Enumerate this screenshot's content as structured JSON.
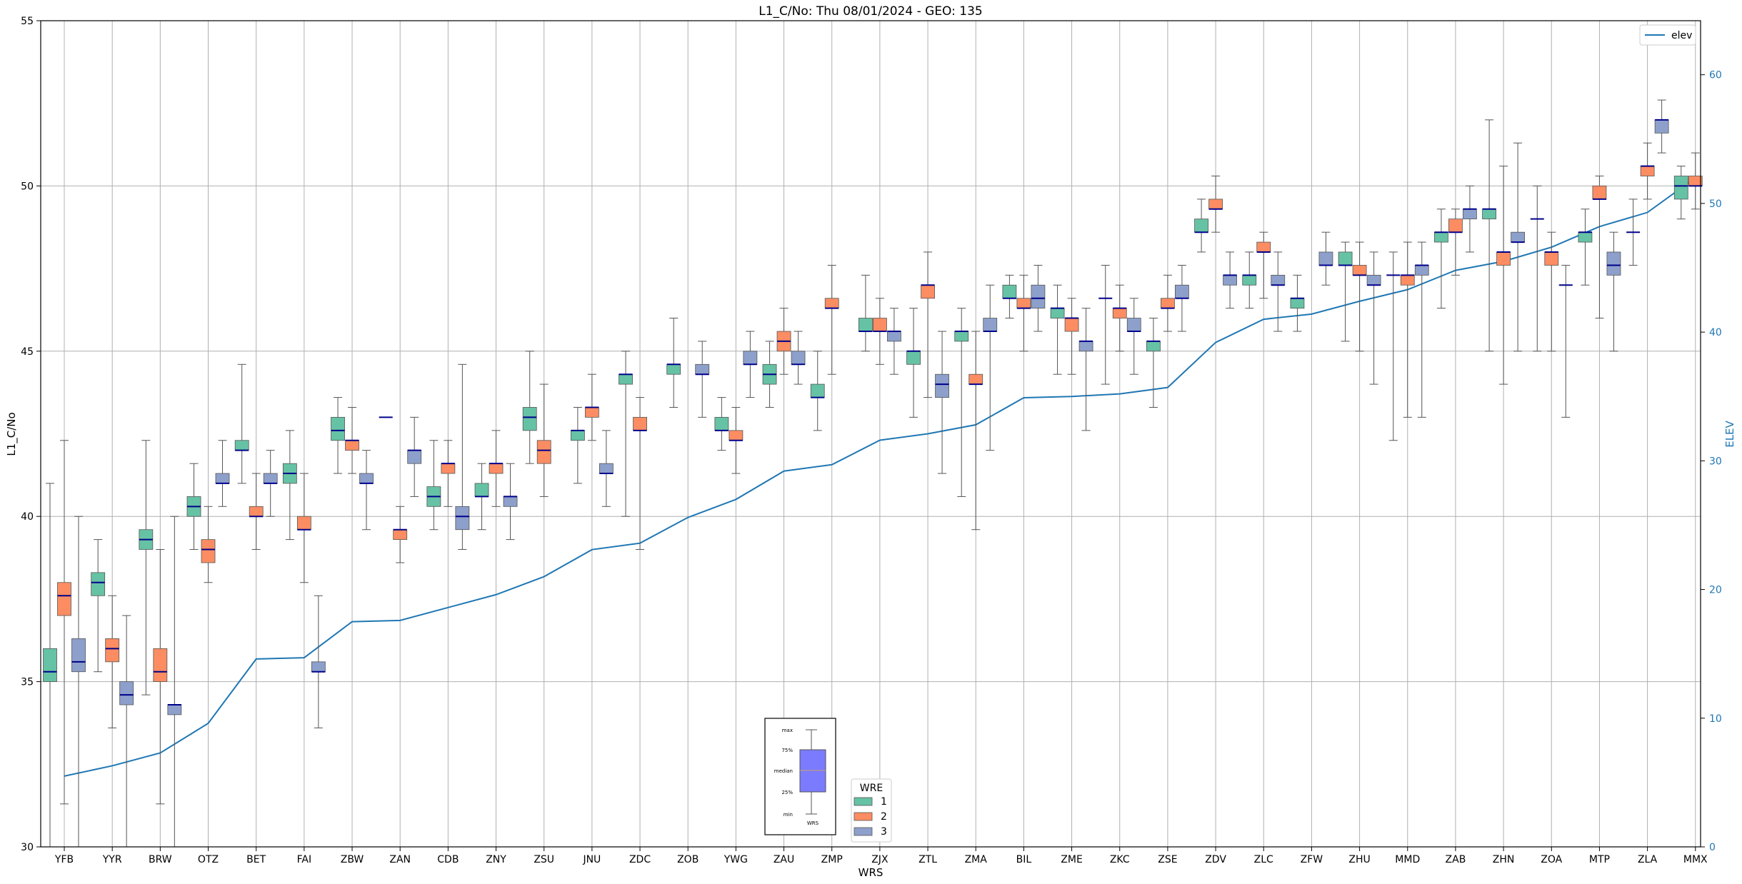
{
  "chart_data": {
    "type": "box",
    "title": "L1_C/No: Thu 08/01/2024 - GEO: 135",
    "xlabel": "WRS",
    "ylabel": "L1_C/No",
    "y2label": "ELEV",
    "ylim": [
      30,
      55
    ],
    "y2lim": [
      0,
      64.2
    ],
    "yticks": [
      "30",
      "35",
      "40",
      "45",
      "50",
      "55"
    ],
    "y2ticks": [
      "0",
      "10",
      "20",
      "30",
      "40",
      "50",
      "60"
    ],
    "grid": true,
    "colors": {
      "wre1": "#66c2a5",
      "wre2": "#fc8d62",
      "wre3": "#8da0cb",
      "elev": "#1f77b4",
      "median": "#00008b",
      "whisker": "#555555",
      "key_box": "#7b7bff"
    },
    "categories": [
      "YFB",
      "YYR",
      "BRW",
      "OTZ",
      "BET",
      "FAI",
      "ZBW",
      "ZAN",
      "CDB",
      "ZNY",
      "ZSU",
      "JNU",
      "ZDC",
      "ZOB",
      "YWG",
      "ZAU",
      "ZMP",
      "ZJX",
      "ZTL",
      "ZMA",
      "BIL",
      "ZME",
      "ZKC",
      "ZSE",
      "ZDV",
      "ZLC",
      "ZFW",
      "ZHU",
      "MMD",
      "ZAB",
      "ZHN",
      "ZOA",
      "MTP",
      "ZLA",
      "MMX"
    ],
    "series": [
      {
        "name": "1",
        "boxes": [
          [
            30.0,
            35.0,
            35.3,
            36.0,
            41.0
          ],
          [
            35.3,
            37.6,
            38.0,
            38.3,
            39.3
          ],
          [
            34.6,
            39.0,
            39.3,
            39.6,
            42.3
          ],
          [
            39.0,
            40.0,
            40.3,
            40.6,
            41.6
          ],
          [
            41.0,
            42.0,
            42.0,
            42.3,
            44.6
          ],
          [
            39.3,
            41.0,
            41.3,
            41.6,
            42.6
          ],
          [
            41.3,
            42.3,
            42.6,
            43.0,
            43.6
          ],
          [
            null,
            null,
            43.0,
            null,
            44.0
          ],
          [
            39.6,
            40.3,
            40.6,
            40.9,
            42.3
          ],
          [
            39.6,
            40.6,
            40.6,
            41.0,
            41.6
          ],
          [
            41.6,
            42.6,
            43.0,
            43.3,
            45.0
          ],
          [
            41.0,
            42.3,
            42.6,
            42.6,
            43.3
          ],
          [
            40.0,
            44.0,
            44.3,
            44.3,
            45.0
          ],
          [
            43.3,
            44.3,
            44.6,
            44.6,
            46.0
          ],
          [
            42.0,
            42.6,
            42.6,
            43.0,
            43.6
          ],
          [
            43.3,
            44.0,
            44.3,
            44.6,
            45.3
          ],
          [
            42.6,
            43.6,
            43.6,
            44.0,
            45.0
          ],
          [
            45.0,
            45.6,
            45.6,
            46.0,
            47.3
          ],
          [
            43.0,
            44.6,
            45.0,
            45.0,
            46.3
          ],
          [
            40.6,
            45.3,
            45.6,
            45.6,
            46.3
          ],
          [
            46.0,
            46.6,
            46.6,
            47.0,
            47.3
          ],
          [
            44.3,
            46.0,
            46.3,
            46.3,
            47.0
          ],
          [
            44.0,
            null,
            46.6,
            null,
            47.6
          ],
          [
            43.3,
            45.0,
            45.3,
            45.3,
            46.0
          ],
          [
            48.0,
            48.6,
            48.6,
            49.0,
            49.6
          ],
          [
            46.3,
            47.0,
            47.3,
            47.3,
            48.0
          ],
          [
            45.6,
            46.3,
            46.6,
            46.6,
            47.3
          ],
          [
            45.3,
            47.6,
            47.6,
            48.0,
            48.3
          ],
          [
            42.3,
            null,
            47.3,
            null,
            48.0
          ],
          [
            46.3,
            48.3,
            48.6,
            48.6,
            49.3
          ],
          [
            45.0,
            49.0,
            49.3,
            49.3,
            52.0
          ],
          [
            45.0,
            null,
            49.0,
            null,
            50.0
          ],
          [
            47.0,
            48.3,
            48.6,
            48.6,
            49.3
          ],
          [
            47.6,
            null,
            48.6,
            null,
            49.6
          ],
          [
            49.0,
            49.6,
            50.0,
            50.3,
            50.6
          ]
        ]
      },
      {
        "name": "2",
        "boxes": [
          [
            31.3,
            37.0,
            37.6,
            38.0,
            42.3
          ],
          [
            33.6,
            35.6,
            36.0,
            36.3,
            37.6
          ],
          [
            31.3,
            35.0,
            35.3,
            36.0,
            39.0
          ],
          [
            38.0,
            38.6,
            39.0,
            39.3,
            40.3
          ],
          [
            39.0,
            40.0,
            40.0,
            40.3,
            41.3
          ],
          [
            38.0,
            39.6,
            39.6,
            40.0,
            41.3
          ],
          [
            41.3,
            42.0,
            42.3,
            42.3,
            43.3
          ],
          [
            38.6,
            39.3,
            39.6,
            39.6,
            40.3
          ],
          [
            40.3,
            41.3,
            41.6,
            41.6,
            42.3
          ],
          [
            40.3,
            41.3,
            41.6,
            41.6,
            42.6
          ],
          [
            40.6,
            41.6,
            42.0,
            42.3,
            44.0
          ],
          [
            42.3,
            43.0,
            43.3,
            43.3,
            44.3
          ],
          [
            39.0,
            42.6,
            42.6,
            43.0,
            43.6
          ],
          [
            null,
            null,
            null,
            null,
            null
          ],
          [
            41.3,
            42.3,
            42.3,
            42.6,
            43.3
          ],
          [
            44.3,
            45.0,
            45.3,
            45.6,
            46.3
          ],
          [
            44.3,
            46.3,
            46.3,
            46.6,
            47.6
          ],
          [
            44.6,
            45.6,
            45.6,
            46.0,
            46.6
          ],
          [
            43.6,
            46.6,
            47.0,
            47.0,
            48.0
          ],
          [
            39.6,
            44.0,
            44.0,
            44.3,
            45.6
          ],
          [
            45.0,
            46.3,
            46.3,
            46.6,
            47.3
          ],
          [
            44.3,
            45.6,
            46.0,
            46.0,
            46.6
          ],
          [
            45.0,
            46.0,
            46.3,
            46.3,
            47.0
          ],
          [
            45.6,
            46.3,
            46.3,
            46.6,
            47.3
          ],
          [
            48.6,
            49.3,
            49.3,
            49.6,
            50.3
          ],
          [
            46.6,
            48.0,
            48.0,
            48.3,
            48.6
          ],
          [
            null,
            null,
            null,
            null,
            null
          ],
          [
            45.0,
            47.3,
            47.3,
            47.6,
            48.3
          ],
          [
            43.0,
            47.0,
            47.3,
            47.3,
            48.3
          ],
          [
            47.3,
            48.6,
            48.6,
            49.0,
            49.3
          ],
          [
            44.0,
            47.6,
            48.0,
            48.0,
            50.6
          ],
          [
            45.0,
            47.6,
            48.0,
            48.0,
            48.6
          ],
          [
            46.0,
            49.6,
            49.6,
            50.0,
            50.3
          ],
          [
            49.6,
            50.3,
            50.6,
            50.6,
            51.3
          ],
          [
            49.3,
            50.0,
            50.0,
            50.3,
            51.0
          ]
        ]
      },
      {
        "name": "3",
        "boxes": [
          [
            30.0,
            35.3,
            35.6,
            36.3,
            40.0
          ],
          [
            30.0,
            34.3,
            34.6,
            35.0,
            37.0
          ],
          [
            30.0,
            34.0,
            34.3,
            34.3,
            40.0
          ],
          [
            40.3,
            41.0,
            41.0,
            41.3,
            42.3
          ],
          [
            40.0,
            41.0,
            41.0,
            41.3,
            42.0
          ],
          [
            33.6,
            35.3,
            35.3,
            35.6,
            37.6
          ],
          [
            39.6,
            41.0,
            41.0,
            41.3,
            42.0
          ],
          [
            40.6,
            41.6,
            42.0,
            42.0,
            43.0
          ],
          [
            39.0,
            39.6,
            40.0,
            40.3,
            44.6
          ],
          [
            39.3,
            40.3,
            40.6,
            40.6,
            41.6
          ],
          [
            null,
            null,
            null,
            null,
            null
          ],
          [
            40.3,
            41.3,
            41.3,
            41.6,
            42.6
          ],
          [
            null,
            null,
            null,
            null,
            null
          ],
          [
            43.0,
            44.3,
            44.3,
            44.6,
            45.3
          ],
          [
            43.6,
            44.6,
            44.6,
            45.0,
            45.6
          ],
          [
            44.0,
            44.6,
            44.6,
            45.0,
            45.6
          ],
          [
            null,
            null,
            null,
            null,
            null
          ],
          [
            44.3,
            45.3,
            45.6,
            45.6,
            46.3
          ],
          [
            41.3,
            43.6,
            44.0,
            44.3,
            45.6
          ],
          [
            42.0,
            45.6,
            45.6,
            46.0,
            47.0
          ],
          [
            45.6,
            46.3,
            46.6,
            47.0,
            47.6
          ],
          [
            42.6,
            45.0,
            45.3,
            45.3,
            46.3
          ],
          [
            44.3,
            45.6,
            45.6,
            46.0,
            46.6
          ],
          [
            45.6,
            46.6,
            46.6,
            47.0,
            47.6
          ],
          [
            46.3,
            47.0,
            47.3,
            47.3,
            48.0
          ],
          [
            45.6,
            47.0,
            47.0,
            47.3,
            48.0
          ],
          [
            47.0,
            47.6,
            47.6,
            48.0,
            48.6
          ],
          [
            44.0,
            47.0,
            47.0,
            47.3,
            48.0
          ],
          [
            43.0,
            47.3,
            47.6,
            47.6,
            48.3
          ],
          [
            48.0,
            49.0,
            49.3,
            49.3,
            50.0
          ],
          [
            45.0,
            48.3,
            48.3,
            48.6,
            51.3
          ],
          [
            43.0,
            null,
            47.0,
            null,
            47.6
          ],
          [
            45.0,
            47.3,
            47.6,
            48.0,
            48.6
          ],
          [
            51.0,
            51.6,
            52.0,
            52.0,
            52.6
          ],
          [
            null,
            null,
            null,
            null,
            null
          ]
        ]
      }
    ],
    "solo_median": [
      [
        null,
        null,
        null,
        null,
        null,
        null,
        null,
        null,
        null,
        null,
        null,
        null,
        null,
        null,
        null,
        null,
        null,
        null,
        null,
        null,
        null,
        null,
        null,
        null,
        null,
        null,
        null,
        null,
        null,
        null,
        null,
        null,
        null,
        null,
        null
      ],
      [],
      []
    ],
    "elev": {
      "name": "elev",
      "values": [
        5.5,
        6.3,
        7.3,
        9.6,
        14.6,
        14.7,
        17.5,
        17.6,
        18.6,
        19.6,
        21.0,
        23.1,
        23.6,
        25.6,
        27.0,
        29.2,
        29.7,
        31.6,
        32.1,
        32.8,
        34.9,
        35.0,
        35.2,
        35.7,
        39.2,
        41.0,
        41.4,
        42.4,
        43.3,
        44.8,
        45.5,
        46.6,
        48.2,
        49.3,
        52.0
      ]
    },
    "legend": {
      "title": "WRE",
      "items": [
        "1",
        "2",
        "3"
      ],
      "elev_label": "elev"
    },
    "key": {
      "labels": [
        "max",
        "75%",
        "median",
        "25%",
        "min"
      ],
      "xlabel": "WRS"
    }
  }
}
